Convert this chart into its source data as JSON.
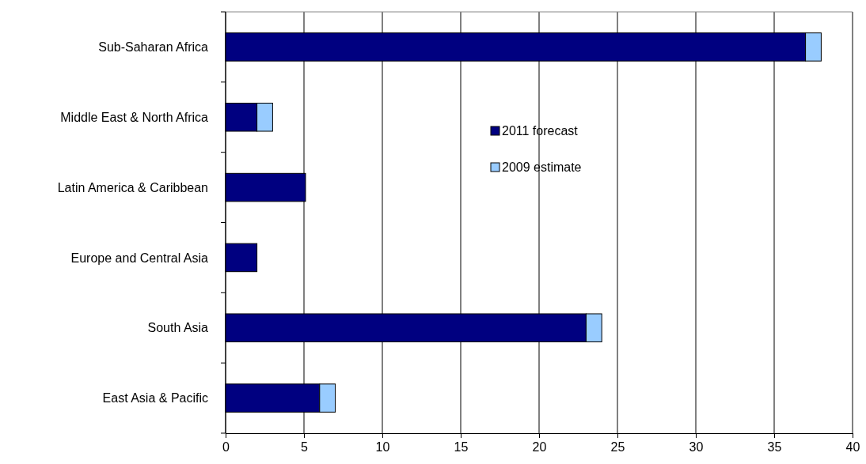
{
  "chart_data": {
    "type": "bar",
    "orientation": "horizontal",
    "stacked": true,
    "categories": [
      "Sub-Saharan Africa",
      "Middle East & North Africa",
      "Latin America & Caribbean",
      "Europe and Central Asia",
      "South Asia",
      "East Asia & Pacific"
    ],
    "series": [
      {
        "name": "2011 forecast",
        "color": "#000080",
        "values": [
          37,
          2,
          5.1,
          2,
          23,
          6
        ]
      },
      {
        "name": "2009 estimate",
        "color": "#99ccff",
        "values": [
          1,
          1,
          0,
          0,
          1,
          1
        ]
      }
    ],
    "xlim": [
      0,
      40
    ],
    "xticks": [
      0,
      5,
      10,
      15,
      20,
      25,
      30,
      35,
      40
    ],
    "grid": "x",
    "legend": "top"
  }
}
